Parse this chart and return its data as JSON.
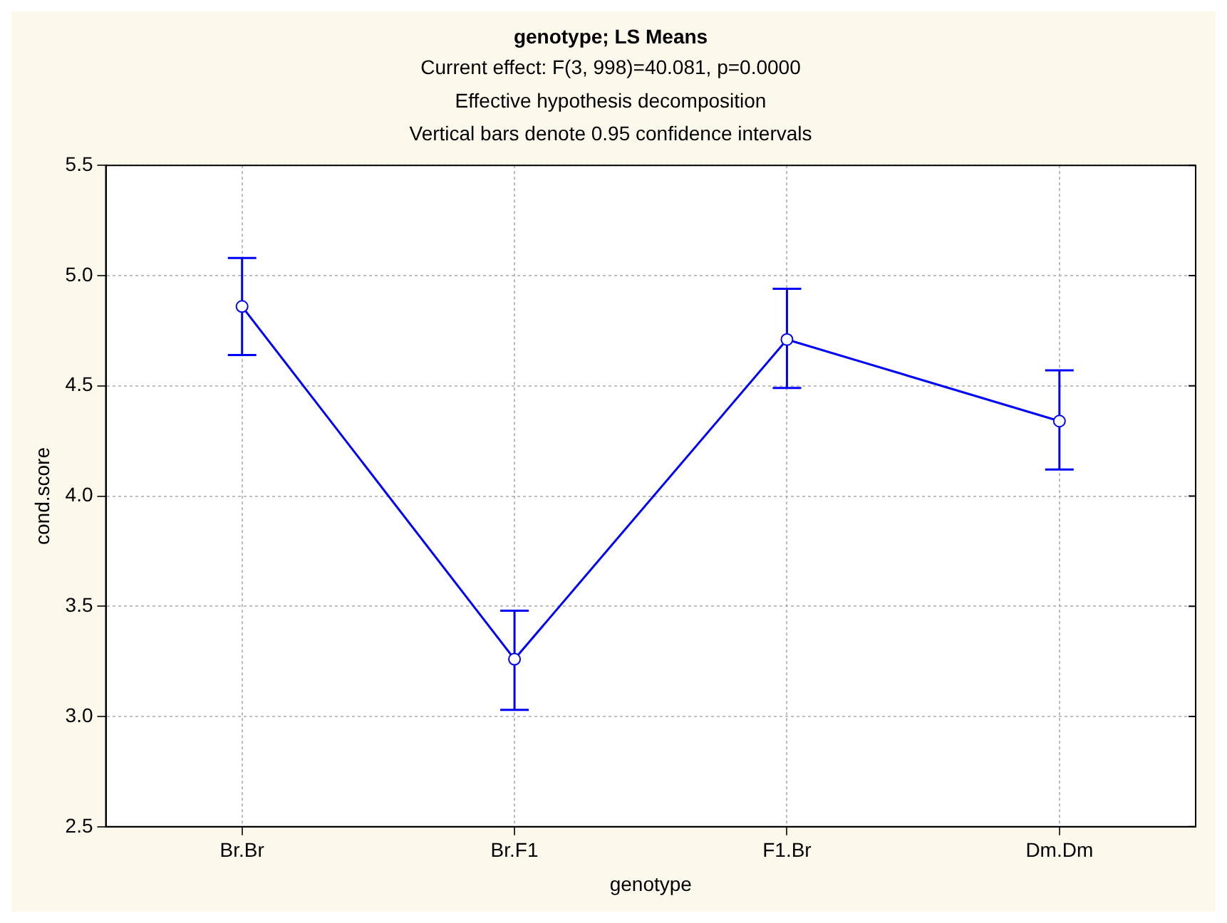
{
  "chart_data": {
    "type": "line",
    "title": "genotype; LS Means",
    "subtitle": "Current effect: F(3, 998)=40.081, p=0.0000",
    "annotations": [
      "Effective hypothesis decomposition",
      "Vertical bars denote 0.95 confidence intervals"
    ],
    "xlabel": "genotype",
    "ylabel": "cond.score",
    "categories": [
      "Br.Br",
      "Br.F1",
      "F1.Br",
      "Dm.Dm"
    ],
    "series": [
      {
        "color": "#0000ff",
        "values": [
          4.86,
          3.26,
          4.71,
          4.34
        ],
        "errors": [
          [
            4.64,
            5.08
          ],
          [
            3.03,
            3.48
          ],
          [
            4.49,
            4.94
          ],
          [
            4.12,
            4.57
          ]
        ]
      }
    ],
    "ylim": [
      2.5,
      5.5
    ],
    "yticks": [
      {
        "value": 2.5,
        "label": "2.5"
      },
      {
        "value": 3,
        "label": "3.0"
      },
      {
        "value": 3.5,
        "label": "3.5"
      },
      {
        "value": 4,
        "label": "4.0"
      },
      {
        "value": 4.5,
        "label": "4.5"
      },
      {
        "value": 5,
        "label": "5.0"
      },
      {
        "value": 5.5,
        "label": "5.5"
      }
    ],
    "grid": true,
    "legend": false,
    "marker": "circle",
    "line_style": "solid"
  }
}
